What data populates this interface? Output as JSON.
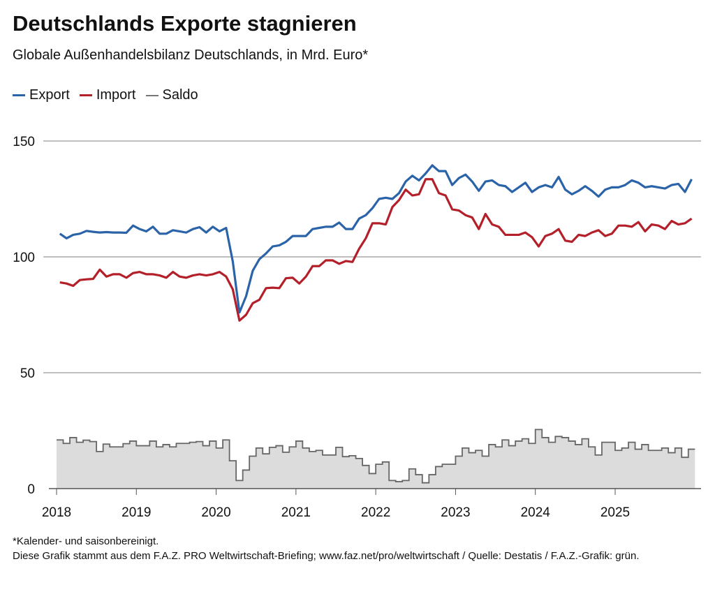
{
  "title": "Deutschlands Exporte stagnieren",
  "subtitle": "Globale Außenhandelsbilanz Deutschlands, in Mrd. Euro*",
  "footnote": "*Kalender- und saisonbereinigt.",
  "source": "Diese Grafik stammt aus dem F.A.Z. PRO Weltwirtschaft-Briefing; www.faz.net/pro/weltwirtschaft / Quelle: Destatis / F.A.Z.-Grafik: grün.",
  "chart_data": {
    "type": "line",
    "title": "Deutschlands Exporte stagnieren",
    "x_start": "2018-01",
    "frequency": "monthly",
    "x_ticks": [
      "2018",
      "2019",
      "2020",
      "2021",
      "2022",
      "2023",
      "2024",
      "2025"
    ],
    "y_ticks": [
      "0",
      "50",
      "100",
      "150"
    ],
    "ylim": [
      0,
      150
    ],
    "grid": true,
    "legend_position": "top-left",
    "colors": {
      "Export": "#2b63a8",
      "Import": "#b3202a",
      "Saldo": "#666666",
      "saldo_fill": "#dcdcdc"
    },
    "series": [
      {
        "name": "Export",
        "type": "line",
        "values": [
          110,
          108,
          109.5,
          110,
          111.2,
          110.8,
          110.5,
          110.7,
          110.5,
          110.5,
          110.4,
          113.5,
          112,
          111,
          113,
          110,
          110,
          111.5,
          111,
          110.5,
          112,
          112.8,
          110.5,
          113,
          111,
          112.5,
          98,
          76,
          83,
          94,
          99,
          101.5,
          104.5,
          105,
          106.5,
          109,
          109,
          109,
          112,
          112.5,
          113,
          113,
          114.8,
          112,
          112,
          116.5,
          118,
          121,
          125,
          125.5,
          125,
          127.5,
          132.5,
          135,
          133,
          136,
          139.5,
          137,
          137,
          131,
          134,
          135.5,
          132.5,
          128.5,
          132.5,
          133,
          131,
          130.5,
          128,
          130,
          132,
          128,
          130,
          131,
          130,
          134.5,
          129,
          127,
          128.5,
          130.5,
          128.5,
          126,
          129,
          130,
          130,
          131,
          133,
          132,
          130,
          130.5,
          130,
          129.5,
          131,
          131.5,
          128,
          133.5
        ]
      },
      {
        "name": "Import",
        "type": "line",
        "values": [
          89,
          88.5,
          87.5,
          90,
          90.3,
          90.5,
          94.5,
          91.5,
          92.5,
          92.5,
          91,
          93,
          93.5,
          92.5,
          92.5,
          92,
          91,
          93.5,
          91.5,
          91,
          92,
          92.5,
          92,
          92.5,
          93.5,
          91.5,
          86,
          72.5,
          75,
          80,
          81.5,
          86.5,
          86.7,
          86.5,
          90.8,
          91,
          88.5,
          91.5,
          96,
          96,
          98.5,
          98.5,
          97,
          98.2,
          97.8,
          103.5,
          108,
          114.5,
          114.5,
          114,
          121.5,
          124.5,
          129,
          126.5,
          127,
          133.5,
          133.5,
          127.5,
          126.5,
          120.5,
          120,
          118,
          117,
          112,
          118.5,
          114,
          113,
          109.5,
          109.5,
          109.5,
          110.5,
          108.5,
          104.5,
          109,
          110,
          112,
          107,
          106.5,
          109.5,
          109,
          110.5,
          111.5,
          109,
          110,
          113.5,
          113.5,
          113,
          115,
          111,
          114,
          113.5,
          112,
          115.5,
          114,
          114.5,
          116.5
        ]
      },
      {
        "name": "Saldo",
        "type": "step-area",
        "values": [
          21,
          19.5,
          22,
          20,
          20.9,
          20.3,
          16,
          19.2,
          18,
          18,
          19.4,
          20.5,
          18.5,
          18.5,
          20.5,
          18,
          19,
          18,
          19.5,
          19.5,
          20,
          20.3,
          18.5,
          20.5,
          17.5,
          21,
          12,
          3.5,
          8,
          14,
          17.5,
          15,
          17.8,
          18.5,
          15.7,
          18,
          20.5,
          17.5,
          16,
          16.5,
          14.5,
          14.5,
          17.8,
          13.8,
          14.2,
          13,
          10,
          6.5,
          10.5,
          11.5,
          3.5,
          3,
          3.5,
          8.5,
          6,
          2.5,
          6,
          9.5,
          10.5,
          10.5,
          14,
          17.5,
          15.5,
          16.5,
          14,
          19,
          18,
          21,
          18.5,
          20.5,
          21.5,
          19.5,
          25.5,
          22,
          20,
          22.5,
          22,
          20.5,
          19,
          21.5,
          18,
          14.5,
          20,
          20,
          16.5,
          17.5,
          20,
          17,
          19,
          16.5,
          16.5,
          17.5,
          15.5,
          17.5,
          13.5,
          17
        ]
      }
    ]
  }
}
